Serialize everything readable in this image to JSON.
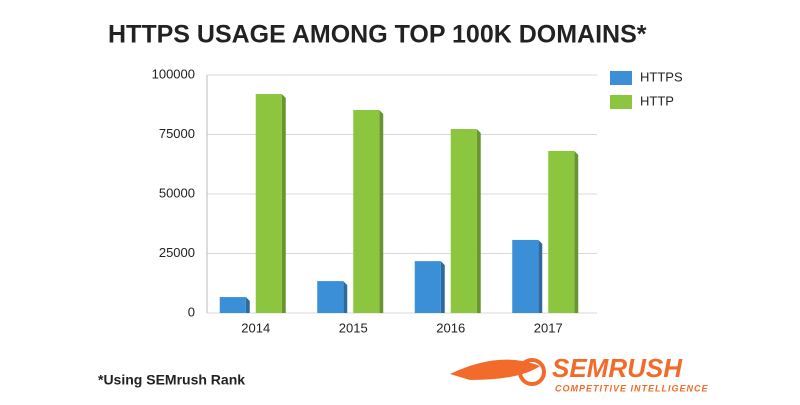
{
  "chart_data": {
    "type": "bar",
    "title": "HTTPS USAGE AMONG TOP 100K DOMAINS*",
    "categories": [
      "2014",
      "2015",
      "2016",
      "2017"
    ],
    "series": [
      {
        "name": "HTTPS",
        "color": "#3a8fd6",
        "values": [
          6700,
          13400,
          21800,
          30700
        ]
      },
      {
        "name": "HTTP",
        "color": "#8cc63f",
        "values": [
          92000,
          85300,
          77300,
          68100
        ]
      }
    ],
    "ylim": [
      0,
      100000
    ],
    "yticks": [
      0,
      25000,
      50000,
      75000,
      100000
    ],
    "grid": true,
    "legend": "right",
    "footnote": "*Using SEMrush Rank"
  },
  "logo": {
    "name": "SEMRUSH",
    "tagline": "COMPETITIVE INTELLIGENCE"
  }
}
